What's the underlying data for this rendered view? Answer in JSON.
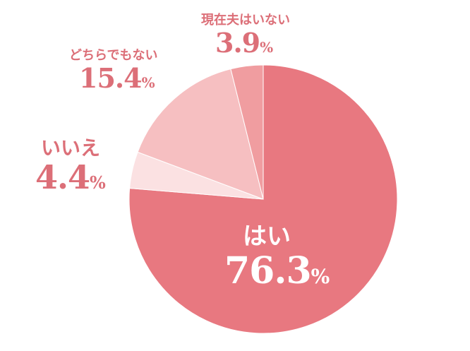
{
  "chart_data": {
    "type": "pie",
    "slices": [
      {
        "label": "はい",
        "value": 76.3,
        "display": "76.3",
        "color": "#e87880"
      },
      {
        "label": "いいえ",
        "value": 4.4,
        "display": "4.4",
        "color": "#fbe1e2"
      },
      {
        "label": "どちらでもない",
        "value": 15.4,
        "display": "15.4",
        "color": "#f6bfc1"
      },
      {
        "label": "現在夫はいない",
        "value": 3.9,
        "display": "3.9",
        "color": "#f09da0"
      }
    ],
    "unit": "%",
    "label_color": "#dc6f78",
    "label_color_on_slice": "#ffffff"
  }
}
